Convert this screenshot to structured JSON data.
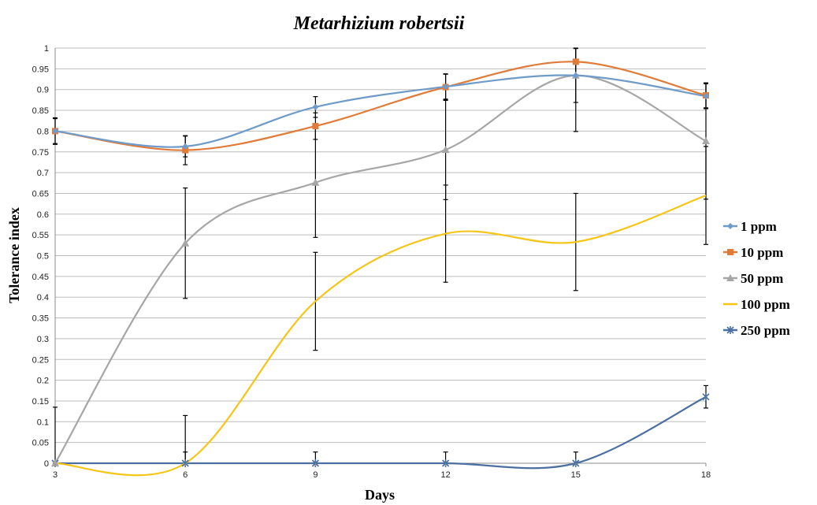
{
  "chart_data": {
    "type": "line",
    "title": "Metarhizium robertsii",
    "xlabel": "Days",
    "ylabel": "Tolerance index",
    "x": [
      3,
      6,
      9,
      12,
      15,
      18
    ],
    "xlim": [
      3,
      18
    ],
    "ylim": [
      0,
      1
    ],
    "y_ticks": [
      "0",
      "0.05",
      "0.1",
      "0.15",
      "0.2",
      "0.25",
      "0.3",
      "0.35",
      "0.4",
      "0.45",
      "0.5",
      "0.55",
      "0.6",
      "0.65",
      "0.7",
      "0.75",
      "0.8",
      "0.85",
      "0.9",
      "0.95",
      "1"
    ],
    "x_ticks": [
      "3",
      "6",
      "9",
      "12",
      "15",
      "18"
    ],
    "grid": true,
    "legend_position": "right",
    "series": [
      {
        "name": "1 ppm",
        "color": "#6f9bc9",
        "marker": "diamond",
        "values": [
          0.8,
          0.763,
          0.858,
          0.907,
          0.934,
          0.884
        ],
        "err": [
          0.032,
          0.025,
          0.025,
          0.03,
          0.065,
          0.03
        ]
      },
      {
        "name": "10 ppm",
        "color": "#e07b39",
        "marker": "square",
        "values": [
          0.8,
          0.754,
          0.812,
          0.906,
          0.967,
          0.886
        ],
        "err": [
          0.03,
          0.035,
          0.032,
          0.032,
          0.032,
          0.03
        ]
      },
      {
        "name": "50 ppm",
        "color": "#a6a6a6",
        "marker": "triangle",
        "values": [
          0.0,
          0.53,
          0.676,
          0.755,
          0.934,
          0.776
        ],
        "err": [
          0.135,
          0.133,
          0.132,
          0.12,
          0.135,
          0.14
        ]
      },
      {
        "name": "100 ppm",
        "color": "#f5c518",
        "marker": "none",
        "values": [
          0.0,
          0.0,
          0.39,
          0.553,
          0.533,
          0.645
        ],
        "err": [
          0.0,
          0.115,
          0.118,
          0.117,
          0.117,
          0.118
        ]
      },
      {
        "name": "250 ppm",
        "color": "#4a6fa0",
        "marker": "star",
        "values": [
          0.0,
          0.0,
          0.0,
          0.0,
          0.0,
          0.16
        ],
        "err": [
          0.0,
          0.027,
          0.027,
          0.027,
          0.027,
          0.027
        ]
      }
    ]
  }
}
